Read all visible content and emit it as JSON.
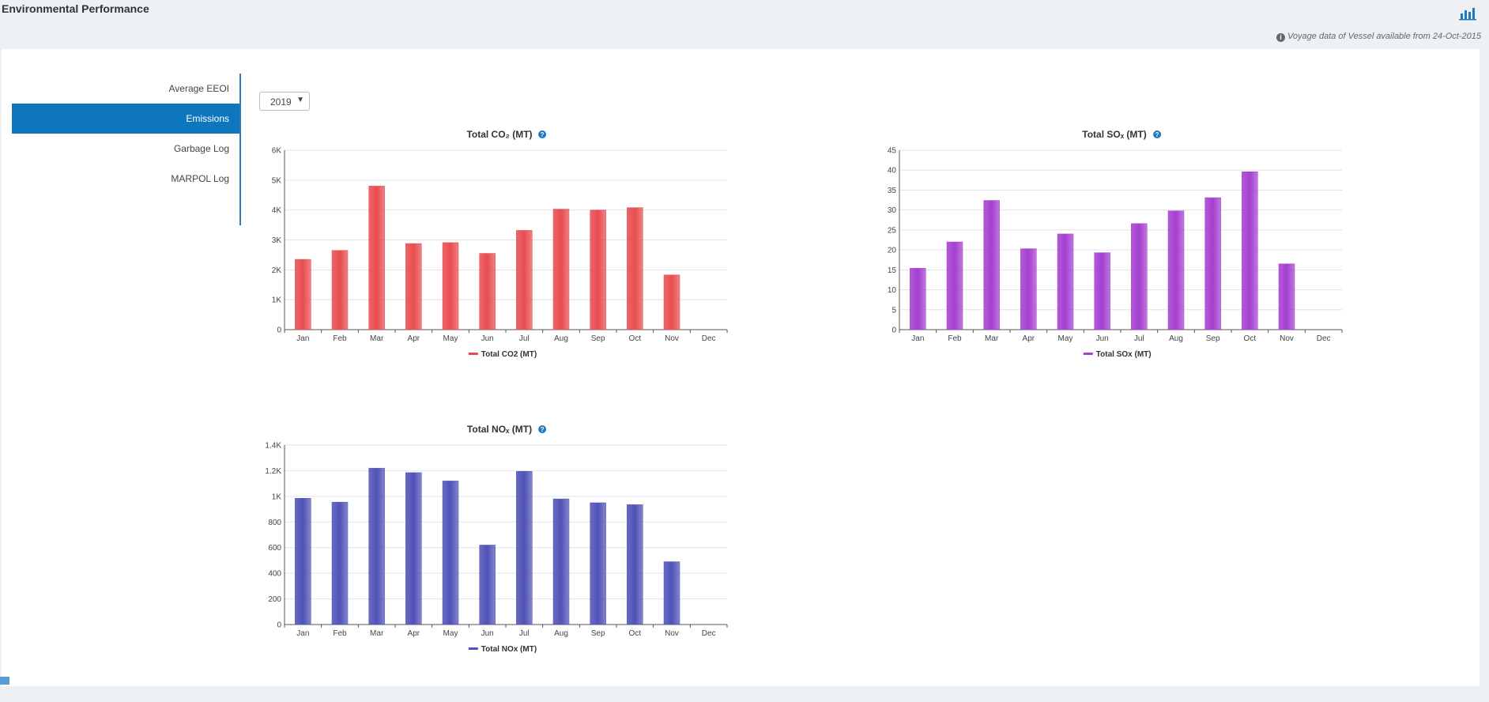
{
  "header": {
    "title": "Environmental Performance",
    "voyage_note": "Voyage data of Vessel available from 24-Oct-2015",
    "info_icon": "info-icon",
    "chart_toggle_icon": "bar-chart-icon"
  },
  "sidebar": {
    "items": [
      {
        "label": "Average EEOI",
        "active": false
      },
      {
        "label": "Emissions",
        "active": true
      },
      {
        "label": "Garbage Log",
        "active": false
      },
      {
        "label": "MARPOL Log",
        "active": false
      }
    ]
  },
  "year_select": {
    "value": "2019"
  },
  "colors": {
    "co2": "#e84c4f",
    "sox": "#a43fd0",
    "nox": "#4f52b6",
    "accent": "#0d76bd"
  },
  "chart_data": [
    {
      "type": "bar",
      "title": "Total CO₂ (MT)",
      "categories": [
        "Jan",
        "Feb",
        "Mar",
        "Apr",
        "May",
        "Jun",
        "Jul",
        "Aug",
        "Sep",
        "Oct",
        "Nov",
        "Dec"
      ],
      "series": [
        {
          "name": "Total CO2 (MT)",
          "values": [
            2350,
            2650,
            4800,
            2880,
            2910,
            2550,
            3320,
            4030,
            4000,
            4080,
            1830,
            0
          ]
        }
      ],
      "ylim": [
        0,
        6000
      ],
      "yticks": [
        0,
        1000,
        2000,
        3000,
        4000,
        5000,
        6000
      ],
      "yticklabels": [
        "0",
        "1K",
        "2K",
        "3K",
        "4K",
        "5K",
        "6K"
      ],
      "grid": true,
      "legend": "bottom"
    },
    {
      "type": "bar",
      "title": "Total SOₓ (MT)",
      "categories": [
        "Jan",
        "Feb",
        "Mar",
        "Apr",
        "May",
        "Jun",
        "Jul",
        "Aug",
        "Sep",
        "Oct",
        "Nov",
        "Dec"
      ],
      "series": [
        {
          "name": "Total SOx (MT)",
          "values": [
            15.4,
            22.0,
            32.4,
            20.3,
            24.0,
            19.3,
            26.6,
            29.8,
            33.1,
            39.6,
            16.5,
            0
          ]
        }
      ],
      "ylim": [
        0,
        45
      ],
      "yticks": [
        0,
        5,
        10,
        15,
        20,
        25,
        30,
        35,
        40,
        45
      ],
      "yticklabels": [
        "0",
        "5",
        "10",
        "15",
        "20",
        "25",
        "30",
        "35",
        "40",
        "45"
      ],
      "grid": true,
      "legend": "bottom"
    },
    {
      "type": "bar",
      "title": "Total NOₓ (MT)",
      "categories": [
        "Jan",
        "Feb",
        "Mar",
        "Apr",
        "May",
        "Jun",
        "Jul",
        "Aug",
        "Sep",
        "Oct",
        "Nov",
        "Dec"
      ],
      "series": [
        {
          "name": "Total NOx (MT)",
          "values": [
            985,
            955,
            1220,
            1185,
            1120,
            620,
            1195,
            980,
            950,
            935,
            490,
            0
          ]
        }
      ],
      "ylim": [
        0,
        1400
      ],
      "yticks": [
        0,
        200,
        400,
        600,
        800,
        1000,
        1200,
        1400
      ],
      "yticklabels": [
        "0",
        "200",
        "400",
        "600",
        "800",
        "1K",
        "1.2K",
        "1.4K"
      ],
      "grid": true,
      "legend": "bottom"
    }
  ]
}
